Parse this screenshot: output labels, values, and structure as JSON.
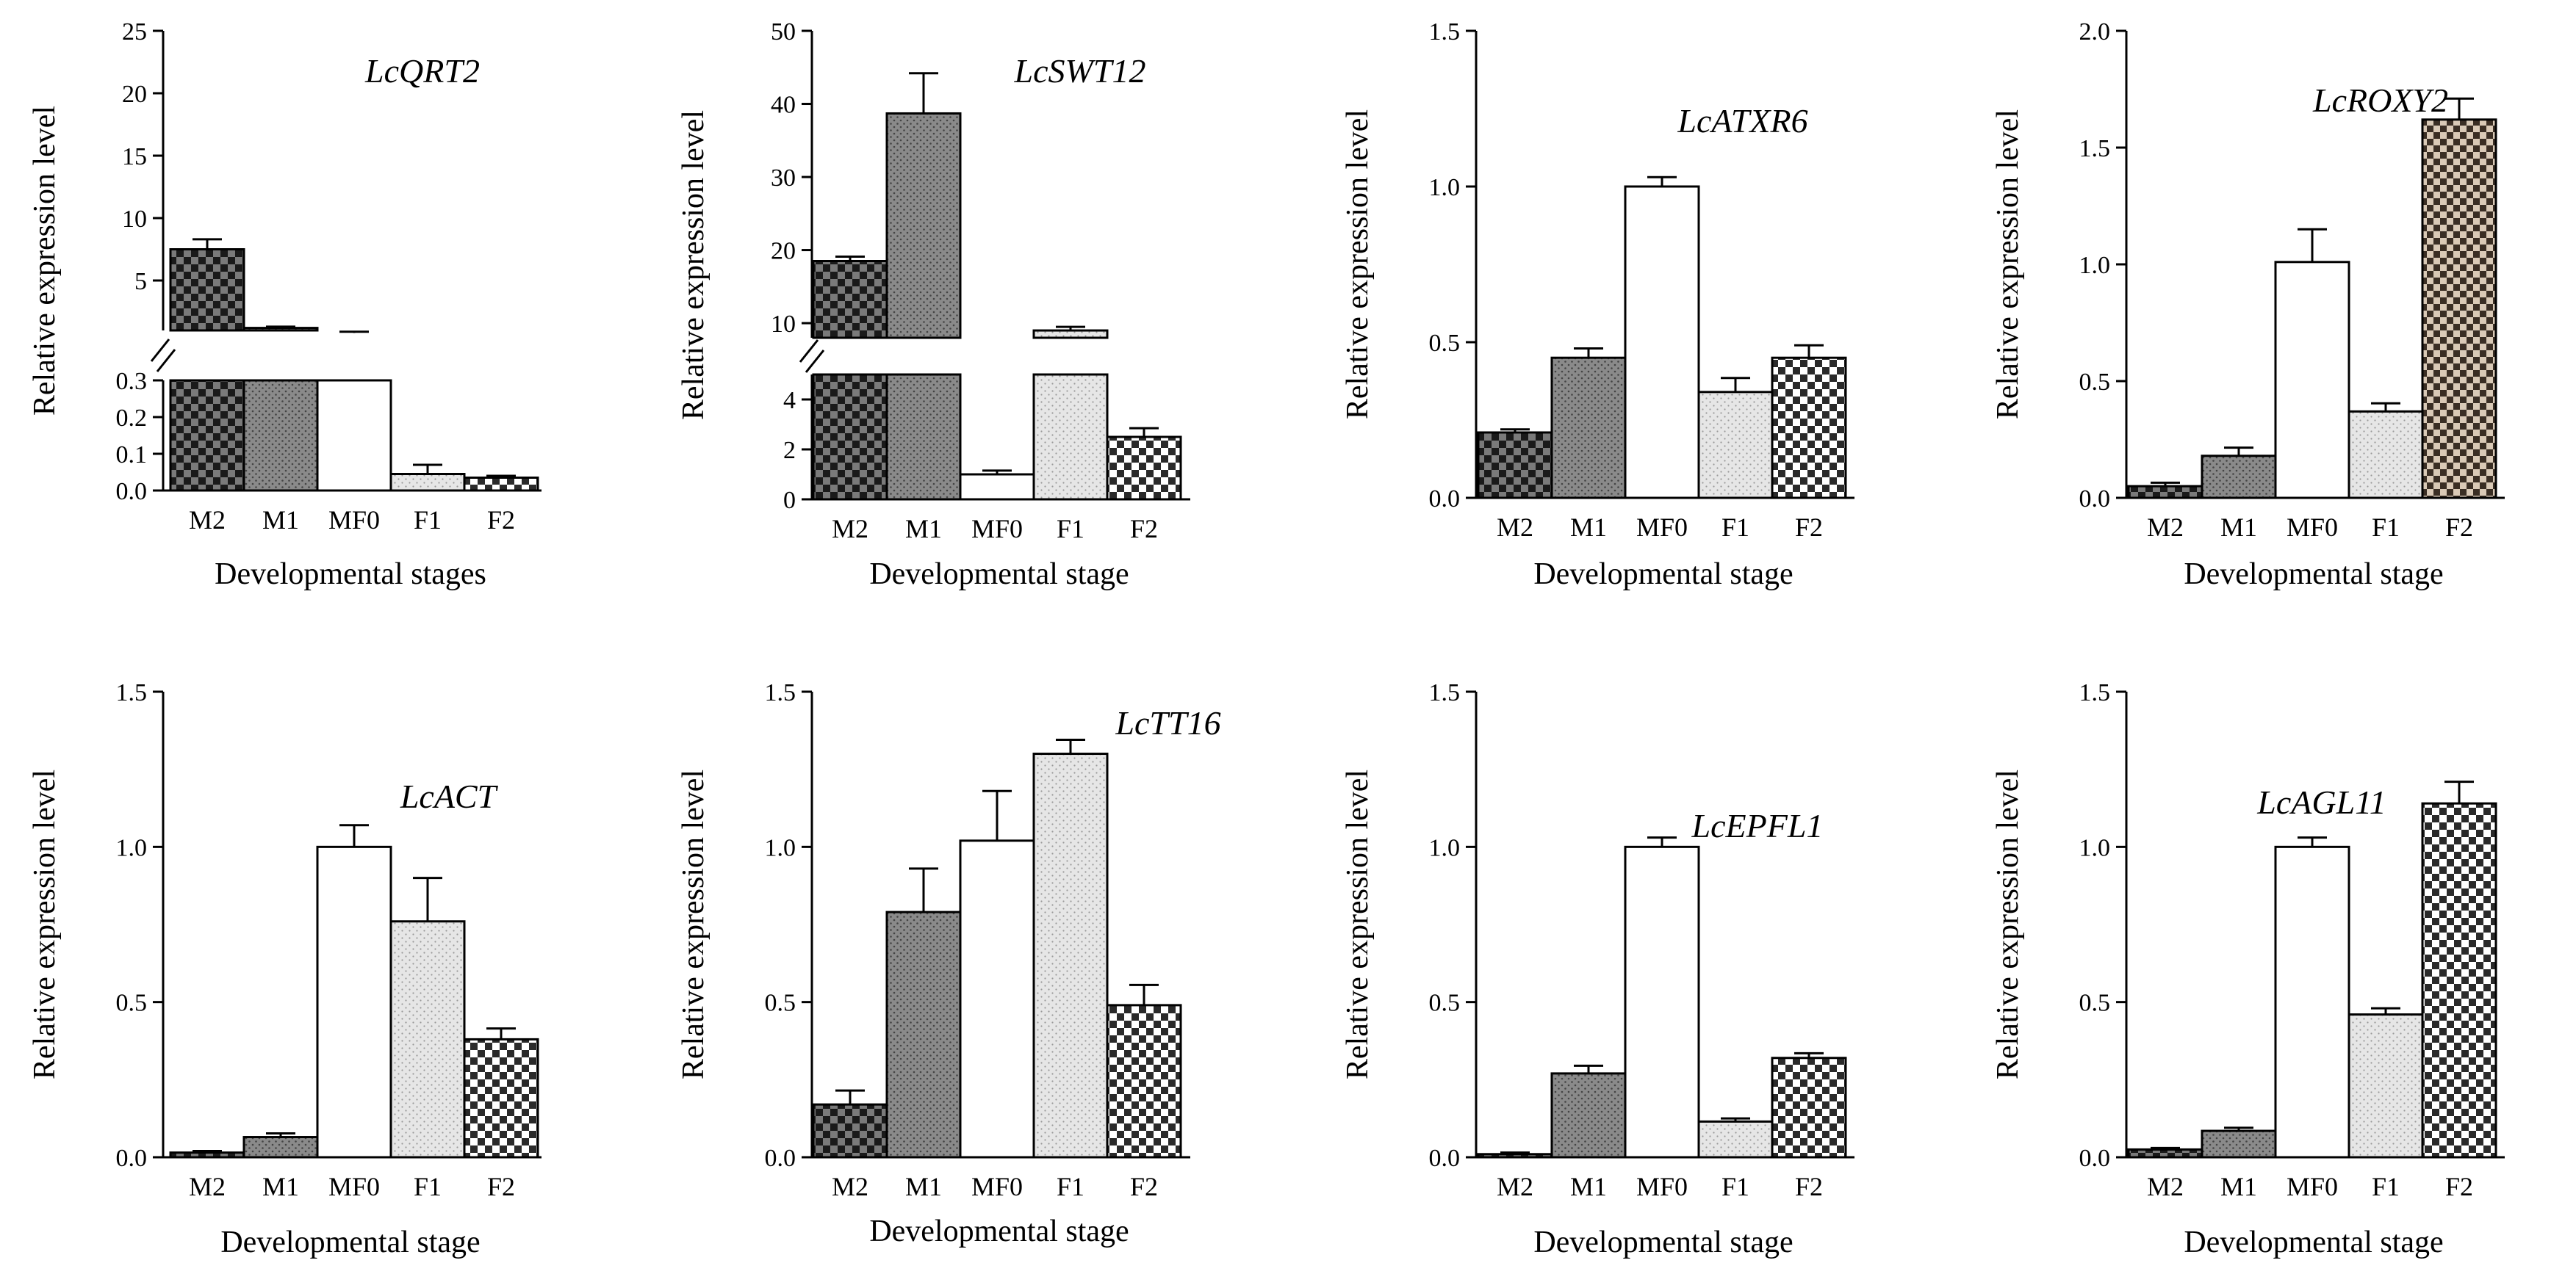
{
  "chart_data": [
    {
      "type": "bar",
      "title": "LcQRT2",
      "ylabel": "Relative expression level",
      "xlabel": "Developmental stages",
      "categories": [
        "M2",
        "M1",
        "MF0",
        "F1",
        "F2"
      ],
      "values": [
        7.5,
        1.2,
        0.8,
        0.045,
        0.035
      ],
      "errors": [
        0.8,
        0.1,
        0.1,
        0.025,
        0.005
      ],
      "broken_axis": {
        "lower": [
          0,
          0.3
        ],
        "lower_ticks": [
          0.0,
          0.1,
          0.2,
          0.3
        ],
        "upper": [
          1,
          25
        ],
        "upper_ticks": [
          5,
          10,
          15,
          20,
          25
        ]
      },
      "tick_labels_lower": [
        "0.0",
        "0.1",
        "0.2",
        "0.3"
      ],
      "tick_labels_upper": [
        "5",
        "10",
        "15",
        "20",
        "25"
      ]
    },
    {
      "type": "bar",
      "title": "LcSWT12",
      "ylabel": "Relative expression level",
      "xlabel": "Developmental stage",
      "categories": [
        "M2",
        "M1",
        "MF0",
        "F1",
        "F2"
      ],
      "values": [
        18.5,
        38.7,
        1.0,
        9.0,
        2.5
      ],
      "errors": [
        0.6,
        5.5,
        0.15,
        0.5,
        0.35
      ],
      "broken_axis": {
        "lower": [
          0,
          5
        ],
        "lower_ticks": [
          0,
          2,
          4
        ],
        "upper": [
          8,
          50
        ],
        "upper_ticks": [
          10,
          20,
          30,
          40,
          50
        ]
      },
      "tick_labels_lower": [
        "0",
        "2",
        "4"
      ],
      "tick_labels_upper": [
        "10",
        "20",
        "30",
        "40",
        "50"
      ]
    },
    {
      "type": "bar",
      "title": "LcATXR6",
      "ylabel": "Relative expression level",
      "xlabel": "Developmental stage",
      "categories": [
        "M2",
        "M1",
        "MF0",
        "F1",
        "F2"
      ],
      "values": [
        0.21,
        0.45,
        1.0,
        0.34,
        0.45
      ],
      "errors": [
        0.01,
        0.03,
        0.03,
        0.045,
        0.04
      ],
      "ylim": [
        0,
        1.5
      ],
      "yticks": [
        0,
        0.5,
        1.0,
        1.5
      ],
      "tick_labels": [
        "0.0",
        "0.5",
        "1.0",
        "1.5"
      ]
    },
    {
      "type": "bar",
      "title": "LcROXY2",
      "ylabel": "Relative expression level",
      "xlabel": "Developmental stage",
      "categories": [
        "M2",
        "M1",
        "MF0",
        "F1",
        "F2"
      ],
      "values": [
        0.05,
        0.18,
        1.01,
        0.37,
        1.62
      ],
      "errors": [
        0.015,
        0.035,
        0.14,
        0.035,
        0.09
      ],
      "ylim": [
        0,
        2.0
      ],
      "yticks": [
        0,
        0.5,
        1.0,
        1.5,
        2.0
      ],
      "tick_labels": [
        "0.0",
        "0.5",
        "1.0",
        "1.5",
        "2.0"
      ]
    },
    {
      "type": "bar",
      "title": "LcACT",
      "ylabel": "Relative expression level",
      "xlabel": "Developmental stage",
      "categories": [
        "M2",
        "M1",
        "MF0",
        "F1",
        "F2"
      ],
      "values": [
        0.015,
        0.065,
        1.0,
        0.76,
        0.38
      ],
      "errors": [
        0.005,
        0.012,
        0.07,
        0.14,
        0.035
      ],
      "ylim": [
        0,
        1.5
      ],
      "yticks": [
        0,
        0.5,
        1.0,
        1.5
      ],
      "tick_labels": [
        "0.0",
        "0.5",
        "1.0",
        "1.5"
      ]
    },
    {
      "type": "bar",
      "title": "LcTT16",
      "ylabel": "Relative expression level",
      "xlabel": "Developmental stage",
      "categories": [
        "M2",
        "M1",
        "MF0",
        "F1",
        "F2"
      ],
      "values": [
        0.17,
        0.79,
        1.02,
        1.3,
        0.49
      ],
      "errors": [
        0.045,
        0.14,
        0.16,
        0.045,
        0.065
      ],
      "ylim": [
        0,
        1.5
      ],
      "yticks": [
        0,
        0.5,
        1.0,
        1.5
      ],
      "tick_labels": [
        "0.0",
        "0.5",
        "1.0",
        "1.5"
      ]
    },
    {
      "type": "bar",
      "title": "LcEPFL1",
      "ylabel": "Relative expression level",
      "xlabel": "Developmental stage",
      "categories": [
        "M2",
        "M1",
        "MF0",
        "F1",
        "F2"
      ],
      "values": [
        0.01,
        0.27,
        1.0,
        0.115,
        0.32
      ],
      "errors": [
        0.005,
        0.025,
        0.03,
        0.01,
        0.015
      ],
      "ylim": [
        0,
        1.5
      ],
      "yticks": [
        0,
        0.5,
        1.0,
        1.5
      ],
      "tick_labels": [
        "0.0",
        "0.5",
        "1.0",
        "1.5"
      ]
    },
    {
      "type": "bar",
      "title": "LcAGL11",
      "ylabel": "Relative expression level",
      "xlabel": "Developmental stage",
      "categories": [
        "M2",
        "M1",
        "MF0",
        "F1",
        "F2"
      ],
      "values": [
        0.025,
        0.085,
        1.0,
        0.46,
        1.14
      ],
      "errors": [
        0.005,
        0.01,
        0.03,
        0.02,
        0.07
      ],
      "ylim": [
        0,
        1.5
      ],
      "yticks": [
        0,
        0.5,
        1.0,
        1.5
      ],
      "tick_labels": [
        "0.0",
        "0.5",
        "1.0",
        "1.5"
      ]
    }
  ],
  "bar_patterns": [
    "checker-dark",
    "stipple-dark-gray",
    "plain-white",
    "stipple-light-gray",
    "checker-light"
  ]
}
